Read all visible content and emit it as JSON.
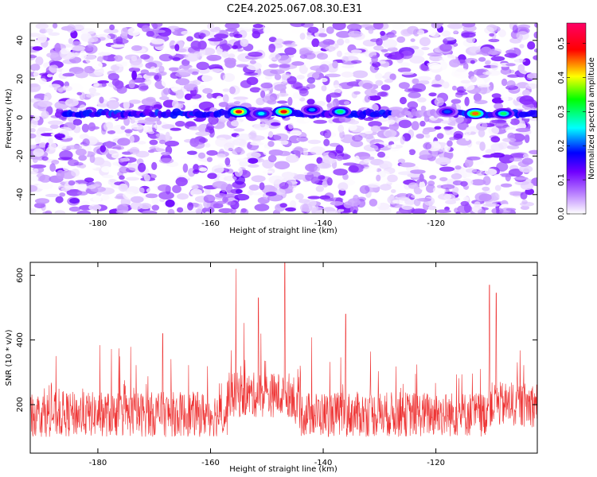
{
  "title": "C2E4.2025.067.08.30.E31",
  "chart_data": [
    {
      "type": "heatmap",
      "xlabel": "Height of straight line (km)",
      "ylabel": "Frequency (Hz)",
      "xlim": [
        -192,
        -102
      ],
      "ylim": [
        -50,
        49
      ],
      "xticks": [
        "-180",
        "-160",
        "-140",
        "-120"
      ],
      "xtick_values": [
        -180,
        -160,
        -140,
        -120
      ],
      "yticks": [
        "-40",
        "-20",
        "0",
        "20",
        "40"
      ],
      "ytick_values": [
        -40,
        -20,
        0,
        20,
        40
      ],
      "colorbar": {
        "label": "Normalized spectral amplitude",
        "range": [
          0,
          0.56
        ],
        "ticks": [
          "0.0",
          "0.1",
          "0.2",
          "0.3",
          "0.4",
          "0.5"
        ],
        "tick_values": [
          0.0,
          0.1,
          0.2,
          0.3,
          0.4,
          0.5
        ],
        "colormap": [
          "#ffffff",
          "#8a2be2",
          "#0000ff",
          "#00ffff",
          "#00ff00",
          "#ffff00",
          "#ff0000",
          "#ff0066"
        ]
      },
      "signal_band": {
        "frequency": 2,
        "hot_spots": [
          {
            "x": -155,
            "y": 3,
            "value": 0.5
          },
          {
            "x": -147,
            "y": 3,
            "value": 0.48
          },
          {
            "x": -113,
            "y": 2,
            "value": 0.45
          },
          {
            "x": -137,
            "y": 3,
            "value": 0.3
          },
          {
            "x": -151,
            "y": 2,
            "value": 0.25
          },
          {
            "x": -142,
            "y": 4,
            "value": 0.22
          },
          {
            "x": -108,
            "y": 2,
            "value": 0.3
          },
          {
            "x": -118,
            "y": 3,
            "value": 0.2
          }
        ]
      }
    },
    {
      "type": "line",
      "xlabel": "Height of straight line (km)",
      "ylabel": "SNR (10 * v/v)",
      "xlim": [
        -192,
        -102
      ],
      "ylim": [
        50,
        640
      ],
      "xticks": [
        "-180",
        "-160",
        "-140",
        "-120"
      ],
      "xtick_values": [
        -180,
        -160,
        -140,
        -120
      ],
      "yticks": [
        "200",
        "400",
        "600"
      ],
      "ytick_values": [
        200,
        400,
        600
      ],
      "series_color": "#ee3333",
      "baseline_mean": 170,
      "notable_peaks": [
        {
          "x": -155.5,
          "y": 620
        },
        {
          "x": -146.8,
          "y": 640
        },
        {
          "x": -110.5,
          "y": 570
        },
        {
          "x": -109.3,
          "y": 545
        },
        {
          "x": -168.5,
          "y": 420
        },
        {
          "x": -136,
          "y": 480
        },
        {
          "x": -151.5,
          "y": 530
        }
      ]
    }
  ]
}
